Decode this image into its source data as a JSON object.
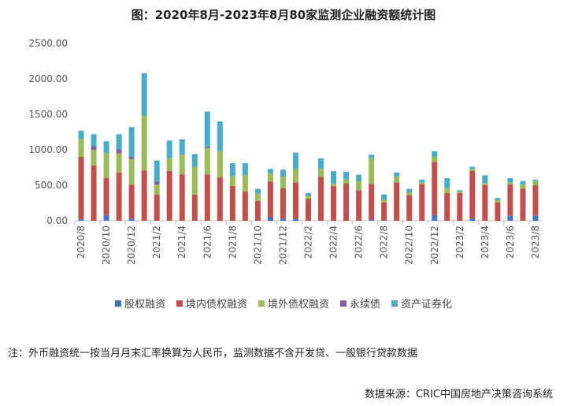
{
  "chart_data": {
    "type": "bar",
    "stacked": true,
    "title": "图：2020年8月-2023年8月80家监测企业融资额统计图",
    "ylim": [
      0,
      2500
    ],
    "yticks": [
      "0.00",
      "500.00",
      "1000.00",
      "1500.00",
      "2000.00",
      "2500.00"
    ],
    "grid": false,
    "legend_position": "bottom",
    "categories": [
      "2020/8",
      "2020/9",
      "2020/10",
      "2020/11",
      "2020/12",
      "2021/1",
      "2021/2",
      "2021/3",
      "2021/4",
      "2021/5",
      "2021/6",
      "2021/7",
      "2021/8",
      "2021/9",
      "2021/10",
      "2021/11",
      "2021/12",
      "2022/1",
      "2022/2",
      "2022/3",
      "2022/4",
      "2022/5",
      "2022/6",
      "2022/7",
      "2022/8",
      "2022/9",
      "2022/10",
      "2022/11",
      "2022/12",
      "2023/1",
      "2023/2",
      "2023/3",
      "2023/4",
      "2023/5",
      "2023/6",
      "2023/7",
      "2023/8"
    ],
    "xtick_labels": [
      "2020/8",
      "2020/10",
      "2020/12",
      "2021/2",
      "2021/4",
      "2021/6",
      "2021/8",
      "2021/10",
      "2021/12",
      "2022/2",
      "2022/4",
      "2022/6",
      "2022/8",
      "2022/10",
      "2022/12",
      "2023/2",
      "2023/4",
      "2023/6",
      "2023/8"
    ],
    "series": [
      {
        "name": "股权融资",
        "color": "#4472c4",
        "values": [
          20,
          0,
          80,
          0,
          30,
          0,
          0,
          0,
          0,
          0,
          0,
          0,
          0,
          0,
          0,
          50,
          30,
          30,
          0,
          0,
          0,
          0,
          0,
          10,
          0,
          0,
          0,
          0,
          80,
          0,
          0,
          30,
          0,
          0,
          70,
          0,
          70
        ]
      },
      {
        "name": "境内债权融资",
        "color": "#c0504d",
        "values": [
          880,
          780,
          520,
          680,
          480,
          710,
          370,
          700,
          650,
          370,
          650,
          610,
          490,
          410,
          280,
          500,
          430,
          510,
          310,
          620,
          490,
          530,
          430,
          510,
          260,
          540,
          360,
          520,
          750,
          390,
          390,
          670,
          500,
          260,
          440,
          450,
          430
        ]
      },
      {
        "name": "境外债权融资",
        "color": "#9bbb59",
        "values": [
          250,
          220,
          360,
          270,
          360,
          770,
          140,
          180,
          280,
          390,
          370,
          370,
          140,
          230,
          100,
          120,
          160,
          190,
          40,
          110,
          30,
          50,
          130,
          360,
          40,
          80,
          40,
          20,
          70,
          70,
          20,
          30,
          30,
          30,
          30,
          60,
          60
        ]
      },
      {
        "name": "永续债",
        "color": "#8064a2",
        "values": [
          0,
          50,
          0,
          60,
          30,
          0,
          40,
          0,
          0,
          0,
          20,
          0,
          0,
          0,
          0,
          0,
          0,
          0,
          0,
          0,
          0,
          0,
          0,
          0,
          0,
          0,
          0,
          0,
          0,
          0,
          0,
          0,
          0,
          0,
          0,
          0,
          0
        ]
      },
      {
        "name": "资产证券化",
        "color": "#4bacc6",
        "values": [
          120,
          170,
          160,
          210,
          420,
          600,
          300,
          250,
          220,
          180,
          500,
          420,
          180,
          170,
          70,
          60,
          100,
          230,
          40,
          150,
          180,
          110,
          90,
          50,
          70,
          60,
          50,
          40,
          80,
          140,
          20,
          30,
          110,
          30,
          60,
          50,
          20
        ]
      }
    ]
  },
  "note": "注：外币融资统一按当月月末汇率换算为人民币，监测数据不含开发贷、一般银行贷款数据",
  "source": "数据来源：CRIC中国房地产决策咨询系统"
}
